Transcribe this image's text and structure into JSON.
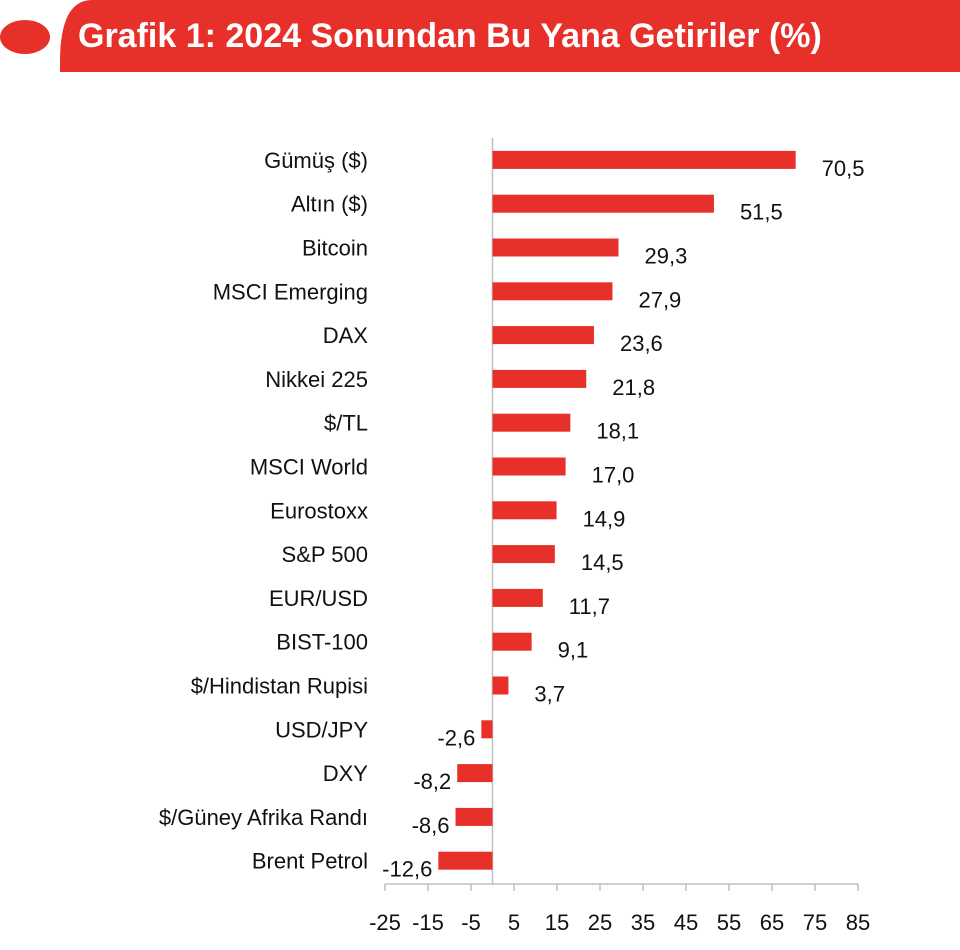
{
  "header": {
    "title": "Grafik 1: 2024 Sonundan Bu Yana Getiriler (%)"
  },
  "colors": {
    "accent": "#e8302a",
    "bar": "#e8302a",
    "axis": "#bfbfbf",
    "text": "#111111"
  },
  "chart_data": {
    "type": "bar",
    "orientation": "horizontal",
    "title": "Grafik 1: 2024 Sonundan Bu Yana Getiriler (%)",
    "categories": [
      "Gümüş ($)",
      "Altın ($)",
      "Bitcoin",
      "MSCI Emerging",
      "DAX",
      "Nikkei 225",
      "$/TL",
      "MSCI World",
      "Eurostoxx",
      "S&P 500",
      "EUR/USD",
      "BIST-100",
      "$/Hindistan Rupisi",
      "USD/JPY",
      "DXY",
      "$/Güney Afrika Randı",
      "Brent Petrol"
    ],
    "values": [
      70.5,
      51.5,
      29.3,
      27.9,
      23.6,
      21.8,
      18.1,
      17.0,
      14.9,
      14.5,
      11.7,
      9.1,
      3.7,
      -2.6,
      -8.2,
      -8.6,
      -12.6
    ],
    "value_labels": [
      "70,5",
      "51,5",
      "29,3",
      "27,9",
      "23,6",
      "21,8",
      "18,1",
      "17,0",
      "14,9",
      "14,5",
      "11,7",
      "9,1",
      "3,7",
      "-2,6",
      "-8,2",
      "-8,6",
      "-12,6"
    ],
    "xlim": [
      -25,
      85
    ],
    "x_ticks": [
      -25,
      -15,
      -5,
      5,
      15,
      25,
      35,
      45,
      55,
      65,
      75,
      85
    ],
    "x_tick_labels": [
      "-25",
      "-15",
      "-5",
      "5",
      "15",
      "25",
      "35",
      "45",
      "55",
      "65",
      "75",
      "85"
    ],
    "grid": false,
    "legend": "none"
  }
}
